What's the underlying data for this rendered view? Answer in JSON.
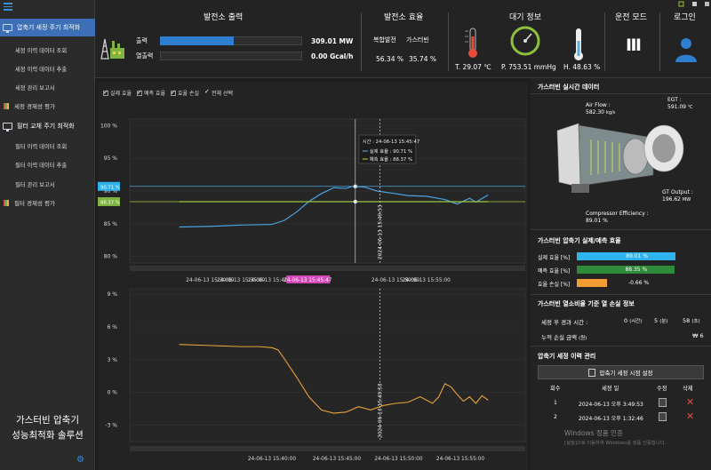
{
  "sidebar": {
    "group1": "압축기 세정 주기 최적화",
    "group1_items": [
      "세정 이력 데이터 조회",
      "세정 이력 데이터 추출",
      "세정 관리 보고서"
    ],
    "group1_eval": "세정 경제성 평가",
    "group2": "필터 교체 주기 최적화",
    "group2_items": [
      "필터 이력 데이터 조회",
      "필터 이력 데이터 추출",
      "필터 관리 보고서"
    ],
    "group2_eval": "필터 경제성 평가",
    "brand_line1": "가스터빈 압축기",
    "brand_line2": "성능최적화 솔루션"
  },
  "header": {
    "output_title": "발전소 출력",
    "output_label": "출력",
    "heat_label": "열출력",
    "output_value": "309.01 MW",
    "heat_value": "0.00 Gcal/h",
    "output_fraction": 0.52,
    "eff_title": "발전소 효율",
    "eff_cc_label": "복합발전",
    "eff_gt_label": "가스터빈",
    "eff_cc_value": "56.34 %",
    "eff_gt_value": "35.74 %",
    "atm_title": "대기 정보",
    "temp_value": "T. 29.07 ℃",
    "press_value": "P. 753.51 mmHg",
    "hum_value": "H. 48.63 %",
    "mode_title": "운전 모드",
    "mode_value": "Ⅲ",
    "login_title": "로그인"
  },
  "chart_controls": {
    "cb_actual": "실제 효율",
    "cb_predict": "예측 효율",
    "cb_loss": "효율 손실",
    "cb_all": "전체 선택"
  },
  "chart_data": [
    {
      "type": "line",
      "y_ticks": [
        "100 %",
        "95 %",
        "90 %",
        "85 %",
        "80 %"
      ],
      "ylim": [
        79,
        101
      ],
      "x_ticks": [
        "24-06-13 15:30:00",
        "24-06-13 15:35:00",
        "24-06-13 15:40:00",
        "24-06-13 15:45:47",
        "24-06-13 15:50:00",
        "24-06-13 15:55:00"
      ],
      "x_marker": "24-06-13 15:45:47",
      "x_vline_label": "2024-06-13 15:49:53",
      "y_marker_actual": "90.71 %",
      "y_marker_predict": "88.37 %",
      "tooltip": {
        "time": "시간 : 24-06-13 15:45:47",
        "actual": "실제 효율 : 90.71 %",
        "predict": "예측 효율 : 88.37 %"
      },
      "series": [
        {
          "name": "실제 효율",
          "color": "#4aa3df",
          "x_min": [
            25,
            30,
            35,
            40,
            42,
            44,
            46,
            48,
            50,
            52,
            53,
            55,
            57,
            60,
            62,
            65,
            68,
            70,
            72,
            73,
            75
          ],
          "values": [
            84.5,
            84.6,
            84.8,
            84.9,
            85.5,
            86.8,
            88.4,
            89.6,
            90.5,
            90.4,
            90.7,
            90.6,
            90.0,
            89.6,
            89.3,
            89.2,
            88.7,
            88.0,
            88.9,
            88.3,
            89.4
          ]
        },
        {
          "name": "예측 효율",
          "color": "#9bc53d",
          "x_min": [
            25,
            75
          ],
          "values": [
            88.37,
            88.37
          ]
        }
      ]
    },
    {
      "type": "line",
      "y_ticks": [
        "9 %",
        "6 %",
        "3 %",
        "0 %",
        "-3 %"
      ],
      "ylim": [
        -4.5,
        9.5
      ],
      "x_ticks": [
        "24-06-13 15:40:00",
        "24-06-13 15:45:00",
        "24-06-13 15:50:00",
        "24-06-13 15:55:00"
      ],
      "x_vline_label": "2024-06-13 15:49:53",
      "series": [
        {
          "name": "효율 손실",
          "color": "#e8a33a",
          "x_min": [
            25,
            30,
            35,
            38,
            40,
            41,
            42,
            44,
            46,
            48,
            50,
            52,
            54,
            56,
            58,
            60,
            62,
            64,
            66,
            67,
            68,
            69,
            70,
            71,
            72,
            73,
            74,
            75
          ],
          "values": [
            4.4,
            4.3,
            4.2,
            4.2,
            4.1,
            3.9,
            3.1,
            1.4,
            -0.4,
            -1.6,
            -1.9,
            -1.8,
            -1.3,
            -1.6,
            -1.2,
            -1.0,
            -0.9,
            -0.4,
            -1.0,
            -0.4,
            0.8,
            0.5,
            -0.2,
            -0.8,
            -0.4,
            -1.0,
            -0.3,
            -0.7
          ]
        }
      ]
    }
  ],
  "right": {
    "rt_title": "가스터빈 실시간 데이터",
    "airflow_label": "Air Flow :",
    "airflow_value": "582.30",
    "airflow_unit": "kg/s",
    "egt_label": "EGT :",
    "egt_value": "591.09",
    "egt_unit": "℃",
    "gtout_label": "GT Output :",
    "gtout_value": "196.62",
    "gtout_unit": "MW",
    "comp_label": "Compressor Efficiency :",
    "comp_value": "89.01 %",
    "eff_title": "가스터빈 압축기 실제/예측 효율",
    "eff_rows": [
      {
        "label": "실제 효율",
        "unit": "[%]",
        "value": "89.01 %",
        "fraction": 0.8901,
        "color": "#2fb3ec"
      },
      {
        "label": "예측 효율",
        "unit": "[%]",
        "value": "88.35 %",
        "fraction": 0.8835,
        "color": "#2e8b3a"
      },
      {
        "label": "효율 손실",
        "unit": "[%]",
        "value": "-0.66 %",
        "fraction": 0.27,
        "color": "#f39c34"
      }
    ],
    "heat_title": "가스터빈 열소비율 기준 열 손실 정보",
    "elapsed_label": "세정 후 경과 시간 :",
    "elapsed_h": "0",
    "elapsed_h_unit": "(시간)",
    "elapsed_m": "5",
    "elapsed_m_unit": "(분)",
    "elapsed_s": "58",
    "elapsed_s_unit": "(초)",
    "loss_label": "누적 손실 금액",
    "loss_unit": "(원)",
    "loss_value": "₩ 6",
    "hist_title": "압축기 세정 이력 관리",
    "set_button": "압축기 세정 시점 설정",
    "hist_cols": [
      "회수",
      "세정 일",
      "수정",
      "삭제"
    ],
    "hist_rows": [
      {
        "no": "1",
        "date": "2024-06-13 오후 3:49:53"
      },
      {
        "no": "2",
        "date": "2024-06-13 오후 1:32:46"
      }
    ],
    "win_line1": "Windows 정품 인증",
    "win_line2": "[설정]으로 이동하여 Windows를 정품 인증합니다."
  }
}
